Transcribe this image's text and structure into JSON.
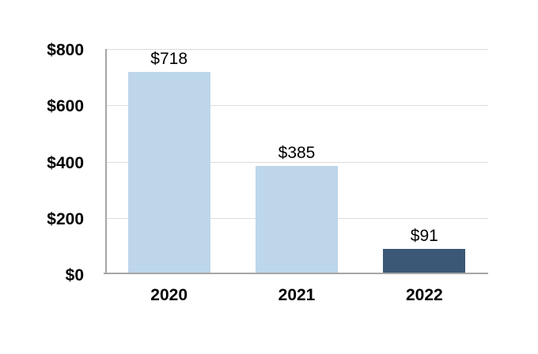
{
  "chart_data": {
    "type": "bar",
    "title": "",
    "xlabel": "",
    "ylabel": "",
    "categories": [
      "2020",
      "2021",
      "2022"
    ],
    "values": [
      718,
      385,
      91
    ],
    "value_labels": [
      "$718",
      "$385",
      "$91"
    ],
    "bar_colors": [
      "#BDD6EA",
      "#BDD6EA",
      "#3B5876"
    ],
    "ylim": [
      0,
      800
    ],
    "yticks": [
      0,
      200,
      400,
      600,
      800
    ],
    "ytick_labels": [
      "$0",
      "$200",
      "$400",
      "$600",
      "$800"
    ],
    "grid": true,
    "legend": false,
    "currency": "USD"
  },
  "colors": {
    "background": "#FFFFFF",
    "bar_light_blue": "#BDD6EA",
    "bar_dark_blue": "#3B5876",
    "gridline": "#DCDCDC",
    "axis_line": "#A6A6A6",
    "text": "#000000"
  }
}
